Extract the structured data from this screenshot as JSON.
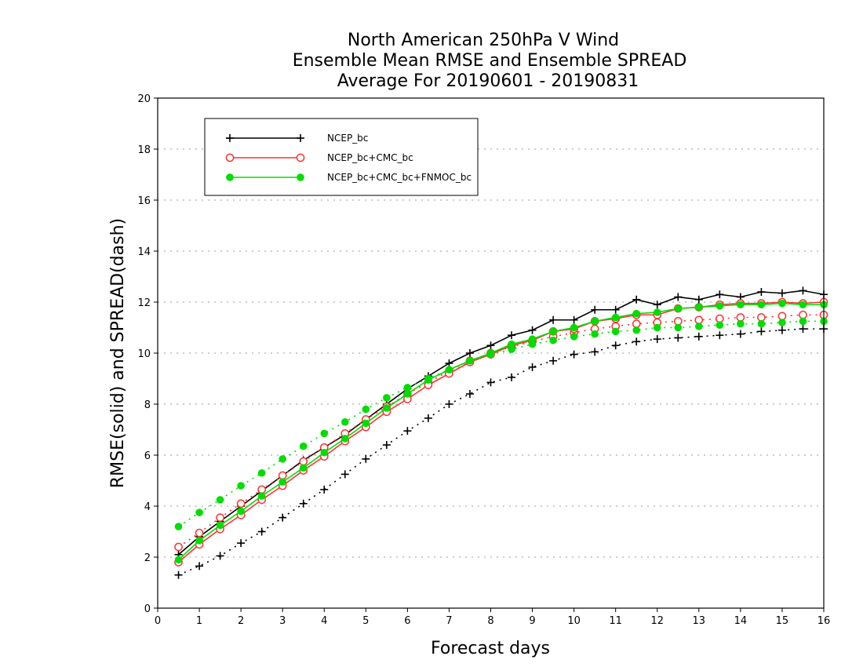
{
  "chart_data": {
    "type": "line",
    "title": [
      "North American 250hPa V Wind",
      "Ensemble Mean RMSE and Ensemble SPREAD",
      "Average For 20190601 - 20190831"
    ],
    "xlabel": "Forecast days",
    "ylabel": "RMSE(solid) and SPREAD(dash)",
    "xlim": [
      0,
      16
    ],
    "ylim": [
      0,
      20
    ],
    "xticks": [
      0,
      1,
      2,
      3,
      4,
      5,
      6,
      7,
      8,
      9,
      10,
      11,
      12,
      13,
      14,
      15,
      16
    ],
    "yticks": [
      0,
      2,
      4,
      6,
      8,
      10,
      12,
      14,
      16,
      18,
      20
    ],
    "grid": "horizontal dotted",
    "legend_position": "top-left",
    "x": [
      0.5,
      1,
      1.5,
      2,
      2.5,
      3,
      3.5,
      4,
      4.5,
      5,
      5.5,
      6,
      6.5,
      7,
      7.5,
      8,
      8.5,
      9,
      9.5,
      10,
      10.5,
      11,
      11.5,
      12,
      12.5,
      13,
      13.5,
      14,
      14.5,
      15,
      15.5,
      16
    ],
    "series": [
      {
        "name": "NCEP_bc",
        "color": "#000000",
        "marker": "plus",
        "rmse": [
          2.1,
          2.8,
          3.4,
          4.0,
          4.6,
          5.2,
          5.8,
          6.3,
          6.8,
          7.4,
          8.0,
          8.6,
          9.1,
          9.6,
          10.0,
          10.3,
          10.7,
          10.9,
          11.3,
          11.3,
          11.7,
          11.7,
          12.1,
          11.9,
          12.2,
          12.1,
          12.3,
          12.2,
          12.4,
          12.35,
          12.45,
          12.3
        ],
        "spread": [
          1.3,
          1.65,
          2.05,
          2.55,
          3.0,
          3.55,
          4.1,
          4.65,
          5.25,
          5.85,
          6.4,
          6.95,
          7.45,
          8.0,
          8.4,
          8.85,
          9.05,
          9.45,
          9.7,
          9.95,
          10.05,
          10.3,
          10.45,
          10.55,
          10.6,
          10.65,
          10.7,
          10.75,
          10.85,
          10.9,
          10.95,
          10.95
        ]
      },
      {
        "name": "NCEP_bc+CMC_bc",
        "color": "#ff3030",
        "marker": "open-circle",
        "rmse": [
          1.8,
          2.5,
          3.1,
          3.65,
          4.25,
          4.8,
          5.4,
          5.95,
          6.55,
          7.1,
          7.7,
          8.2,
          8.75,
          9.2,
          9.65,
          9.95,
          10.3,
          10.5,
          10.85,
          10.95,
          11.25,
          11.35,
          11.5,
          11.5,
          11.75,
          11.8,
          11.9,
          11.95,
          11.95,
          12.0,
          11.95,
          12.0
        ],
        "spread": [
          2.4,
          2.95,
          3.55,
          4.1,
          4.65,
          5.2,
          5.75,
          6.3,
          6.85,
          7.4,
          7.9,
          8.4,
          8.85,
          9.3,
          9.7,
          10.0,
          10.25,
          10.45,
          10.65,
          10.8,
          10.95,
          11.05,
          11.15,
          11.2,
          11.25,
          11.3,
          11.35,
          11.4,
          11.4,
          11.45,
          11.5,
          11.5
        ]
      },
      {
        "name": "NCEP_bc+CMC_bc+FNMOC_bc",
        "color": "#00dd00",
        "marker": "filled-circle",
        "rmse": [
          1.9,
          2.65,
          3.25,
          3.8,
          4.4,
          4.95,
          5.5,
          6.1,
          6.65,
          7.25,
          7.85,
          8.4,
          8.95,
          9.35,
          9.7,
          10.0,
          10.35,
          10.55,
          10.85,
          11.0,
          11.25,
          11.4,
          11.55,
          11.6,
          11.75,
          11.8,
          11.85,
          11.9,
          11.9,
          11.95,
          11.9,
          11.9
        ],
        "spread": [
          3.2,
          3.75,
          4.25,
          4.8,
          5.3,
          5.85,
          6.35,
          6.85,
          7.3,
          7.8,
          8.25,
          8.65,
          9.0,
          9.35,
          9.7,
          9.95,
          10.15,
          10.35,
          10.5,
          10.65,
          10.75,
          10.85,
          10.9,
          11.0,
          11.0,
          11.05,
          11.1,
          11.15,
          11.15,
          11.2,
          11.25,
          11.25
        ]
      }
    ]
  }
}
